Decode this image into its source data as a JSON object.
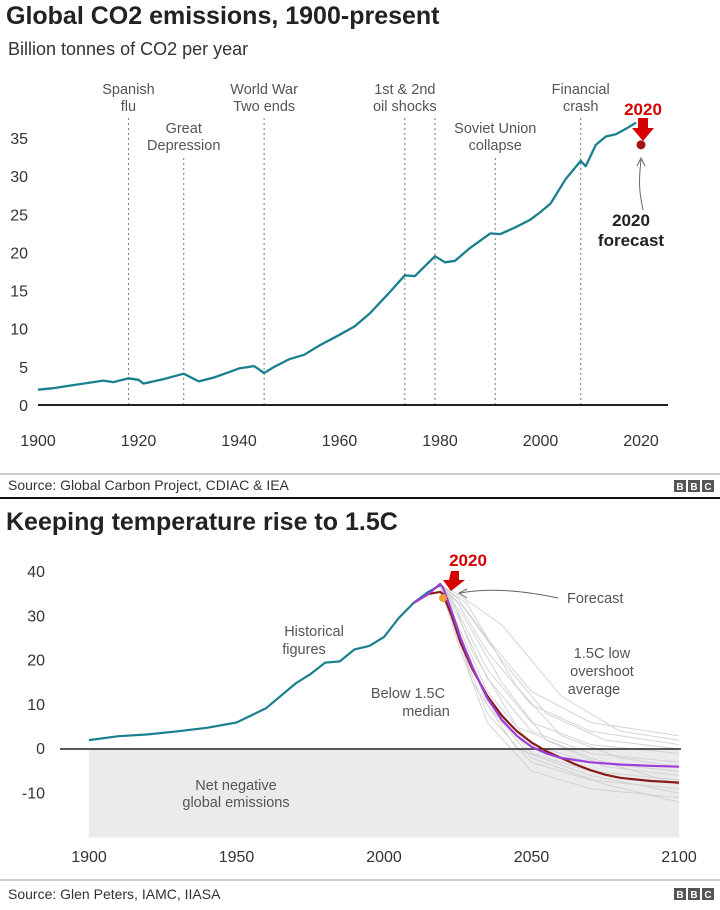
{
  "colors": {
    "historical": "#1a7f8e",
    "below_median": "#9b3fd6",
    "low_overshoot": "#8b1a1a",
    "scenario_bundle": "#cfcfcf",
    "forecast_dot": "#a11515",
    "forecast_dot_2": "#f0a030",
    "highlight_red": "#d40000",
    "negative_band": "#ebebeb"
  },
  "logo_text": "BBC",
  "chart_data": [
    {
      "type": "line",
      "title": "Global CO2 emissions, 1900-present",
      "subtitle": "Billion tonnes of CO2 per year",
      "xlim": [
        1900,
        2020
      ],
      "ylim": [
        0,
        35
      ],
      "x_ticks": [
        1900,
        1920,
        1940,
        1960,
        1980,
        2000,
        2020
      ],
      "y_ticks": [
        0,
        5,
        10,
        15,
        20,
        25,
        30,
        35
      ],
      "grid": false,
      "series": [
        {
          "color_key": "historical",
          "points": [
            [
              1900,
              2.0
            ],
            [
              1903,
              2.2
            ],
            [
              1906,
              2.5
            ],
            [
              1910,
              2.9
            ],
            [
              1913,
              3.2
            ],
            [
              1915,
              3.0
            ],
            [
              1918,
              3.5
            ],
            [
              1920,
              3.3
            ],
            [
              1921,
              2.8
            ],
            [
              1925,
              3.4
            ],
            [
              1929,
              4.1
            ],
            [
              1932,
              3.1
            ],
            [
              1935,
              3.6
            ],
            [
              1938,
              4.3
            ],
            [
              1940,
              4.8
            ],
            [
              1943,
              5.1
            ],
            [
              1945,
              4.2
            ],
            [
              1947,
              5.0
            ],
            [
              1950,
              6.0
            ],
            [
              1953,
              6.6
            ],
            [
              1956,
              7.8
            ],
            [
              1960,
              9.2
            ],
            [
              1963,
              10.3
            ],
            [
              1966,
              12.0
            ],
            [
              1970,
              14.8
            ],
            [
              1973,
              17.0
            ],
            [
              1975,
              16.9
            ],
            [
              1979,
              19.5
            ],
            [
              1981,
              18.7
            ],
            [
              1983,
              18.9
            ],
            [
              1986,
              20.6
            ],
            [
              1990,
              22.5
            ],
            [
              1992,
              22.4
            ],
            [
              1995,
              23.3
            ],
            [
              1998,
              24.3
            ],
            [
              2000,
              25.3
            ],
            [
              2002,
              26.4
            ],
            [
              2005,
              29.6
            ],
            [
              2008,
              32.0
            ],
            [
              2009,
              31.3
            ],
            [
              2011,
              34.1
            ],
            [
              2013,
              35.2
            ],
            [
              2015,
              35.5
            ],
            [
              2017,
              36.2
            ],
            [
              2019,
              37.0
            ]
          ]
        }
      ],
      "forecast_point": {
        "x": 2020,
        "y": 34.1
      },
      "event_lines": [
        {
          "x": 1918,
          "label_lines": [
            "Spanish",
            "flu"
          ]
        },
        {
          "x": 1929,
          "label_lines": [
            "Great",
            "Depression"
          ]
        },
        {
          "x": 1945,
          "label_lines": [
            "World War",
            "Two ends"
          ]
        },
        {
          "x": 1973,
          "label_lines": [
            "1st & 2nd",
            "oil shocks"
          ]
        },
        {
          "x": 1979,
          "label_lines": []
        },
        {
          "x": 1991,
          "label_lines": [
            "Soviet Union",
            "collapse"
          ]
        },
        {
          "x": 2008,
          "label_lines": [
            "Financial",
            "crash"
          ]
        }
      ],
      "annotations": {
        "highlight_label": "2020",
        "forecast_label_lines": [
          "2020",
          "forecast"
        ]
      },
      "source": "Source:  Global Carbon Project, CDIAC & IEA"
    },
    {
      "type": "line",
      "title": "Keeping temperature rise to 1.5C",
      "xlim": [
        1900,
        2100
      ],
      "ylim": [
        -15,
        40
      ],
      "x_ticks": [
        1900,
        1950,
        2000,
        2050,
        2100
      ],
      "y_ticks": [
        -10,
        0,
        10,
        20,
        30,
        40
      ],
      "grid": false,
      "historical": [
        [
          1900,
          2.0
        ],
        [
          1910,
          2.9
        ],
        [
          1920,
          3.3
        ],
        [
          1930,
          4.0
        ],
        [
          1940,
          4.8
        ],
        [
          1950,
          6.0
        ],
        [
          1960,
          9.2
        ],
        [
          1970,
          14.8
        ],
        [
          1975,
          16.9
        ],
        [
          1980,
          19.5
        ],
        [
          1985,
          19.8
        ],
        [
          1990,
          22.5
        ],
        [
          1995,
          23.3
        ],
        [
          2000,
          25.3
        ],
        [
          2005,
          29.6
        ],
        [
          2010,
          33.0
        ],
        [
          2015,
          35.5
        ],
        [
          2019,
          37.0
        ]
      ],
      "below_median": [
        [
          2010,
          33.0
        ],
        [
          2015,
          35.0
        ],
        [
          2019,
          37.3
        ],
        [
          2020,
          36.5
        ],
        [
          2023,
          31
        ],
        [
          2026,
          25
        ],
        [
          2030,
          18.5
        ],
        [
          2035,
          11.5
        ],
        [
          2040,
          6.5
        ],
        [
          2045,
          3.0
        ],
        [
          2050,
          0.5
        ],
        [
          2055,
          -1.0
        ],
        [
          2060,
          -2.0
        ],
        [
          2070,
          -3.0
        ],
        [
          2080,
          -3.5
        ],
        [
          2090,
          -3.8
        ],
        [
          2100,
          -4.0
        ]
      ],
      "low_overshoot_avg": [
        [
          2010,
          33.0
        ],
        [
          2015,
          35.0
        ],
        [
          2019,
          35.5
        ],
        [
          2020,
          35.0
        ],
        [
          2023,
          30
        ],
        [
          2026,
          24
        ],
        [
          2030,
          18
        ],
        [
          2035,
          12
        ],
        [
          2040,
          7.5
        ],
        [
          2045,
          4.0
        ],
        [
          2050,
          1.5
        ],
        [
          2055,
          -0.5
        ],
        [
          2060,
          -2.0
        ],
        [
          2065,
          -3.5
        ],
        [
          2070,
          -4.8
        ],
        [
          2075,
          -5.8
        ],
        [
          2080,
          -6.5
        ],
        [
          2090,
          -7.2
        ],
        [
          2100,
          -7.6
        ]
      ],
      "forecast_point": {
        "x": 2020,
        "y": 34.1
      },
      "scenario_bundle": [
        [
          [
            2019,
            37
          ],
          [
            2025,
            34
          ],
          [
            2035,
            25
          ],
          [
            2050,
            13
          ],
          [
            2070,
            6
          ],
          [
            2100,
            3
          ]
        ],
        [
          [
            2019,
            37
          ],
          [
            2025,
            33
          ],
          [
            2035,
            22
          ],
          [
            2050,
            10
          ],
          [
            2070,
            4
          ],
          [
            2100,
            1
          ]
        ],
        [
          [
            2019,
            37
          ],
          [
            2025,
            31
          ],
          [
            2035,
            18
          ],
          [
            2050,
            6
          ],
          [
            2070,
            1
          ],
          [
            2100,
            -1
          ]
        ],
        [
          [
            2019,
            37
          ],
          [
            2025,
            30
          ],
          [
            2035,
            16
          ],
          [
            2050,
            4
          ],
          [
            2070,
            -1
          ],
          [
            2100,
            -3
          ]
        ],
        [
          [
            2019,
            37
          ],
          [
            2025,
            28
          ],
          [
            2035,
            13
          ],
          [
            2050,
            1
          ],
          [
            2070,
            -3
          ],
          [
            2100,
            -5
          ]
        ],
        [
          [
            2019,
            37
          ],
          [
            2025,
            27
          ],
          [
            2035,
            11
          ],
          [
            2050,
            -1
          ],
          [
            2070,
            -5
          ],
          [
            2100,
            -7
          ]
        ],
        [
          [
            2019,
            37
          ],
          [
            2025,
            25
          ],
          [
            2035,
            8
          ],
          [
            2050,
            -3
          ],
          [
            2070,
            -7
          ],
          [
            2100,
            -9
          ]
        ],
        [
          [
            2019,
            37
          ],
          [
            2025,
            24
          ],
          [
            2035,
            6
          ],
          [
            2050,
            -5
          ],
          [
            2070,
            -9
          ],
          [
            2100,
            -11
          ]
        ],
        [
          [
            2019,
            37
          ],
          [
            2027,
            32
          ],
          [
            2040,
            20
          ],
          [
            2055,
            8
          ],
          [
            2075,
            2
          ],
          [
            2100,
            0
          ]
        ],
        [
          [
            2019,
            37
          ],
          [
            2027,
            30
          ],
          [
            2040,
            15
          ],
          [
            2055,
            2
          ],
          [
            2075,
            -4
          ],
          [
            2100,
            -6
          ]
        ],
        [
          [
            2019,
            37
          ],
          [
            2023,
            34
          ],
          [
            2030,
            22
          ],
          [
            2045,
            5
          ],
          [
            2070,
            -2
          ],
          [
            2100,
            -8
          ]
        ],
        [
          [
            2019,
            37
          ],
          [
            2025,
            35
          ],
          [
            2040,
            28
          ],
          [
            2060,
            12
          ],
          [
            2080,
            4
          ],
          [
            2100,
            2
          ]
        ],
        [
          [
            2019,
            37
          ],
          [
            2022,
            33
          ],
          [
            2030,
            15
          ],
          [
            2045,
            0
          ],
          [
            2070,
            -6
          ],
          [
            2100,
            -10
          ]
        ],
        [
          [
            2019,
            37
          ],
          [
            2028,
            33
          ],
          [
            2045,
            14
          ],
          [
            2060,
            3
          ],
          [
            2080,
            -2
          ],
          [
            2100,
            -4
          ]
        ],
        [
          [
            2019,
            37
          ],
          [
            2024,
            29
          ],
          [
            2035,
            10
          ],
          [
            2050,
            -2
          ],
          [
            2075,
            -8
          ],
          [
            2100,
            -12
          ]
        ]
      ],
      "labels": {
        "historical": [
          "Historical",
          "figures"
        ],
        "below_median": [
          "Below 1.5C",
          "median"
        ],
        "low_overshoot": [
          "1.5C low",
          "overshoot",
          "average"
        ],
        "forecast": "Forecast",
        "net_negative": [
          "Net negative",
          "global emissions"
        ],
        "highlight": "2020"
      },
      "source": "Source:  Glen Peters, IAMC, IIASA"
    }
  ]
}
